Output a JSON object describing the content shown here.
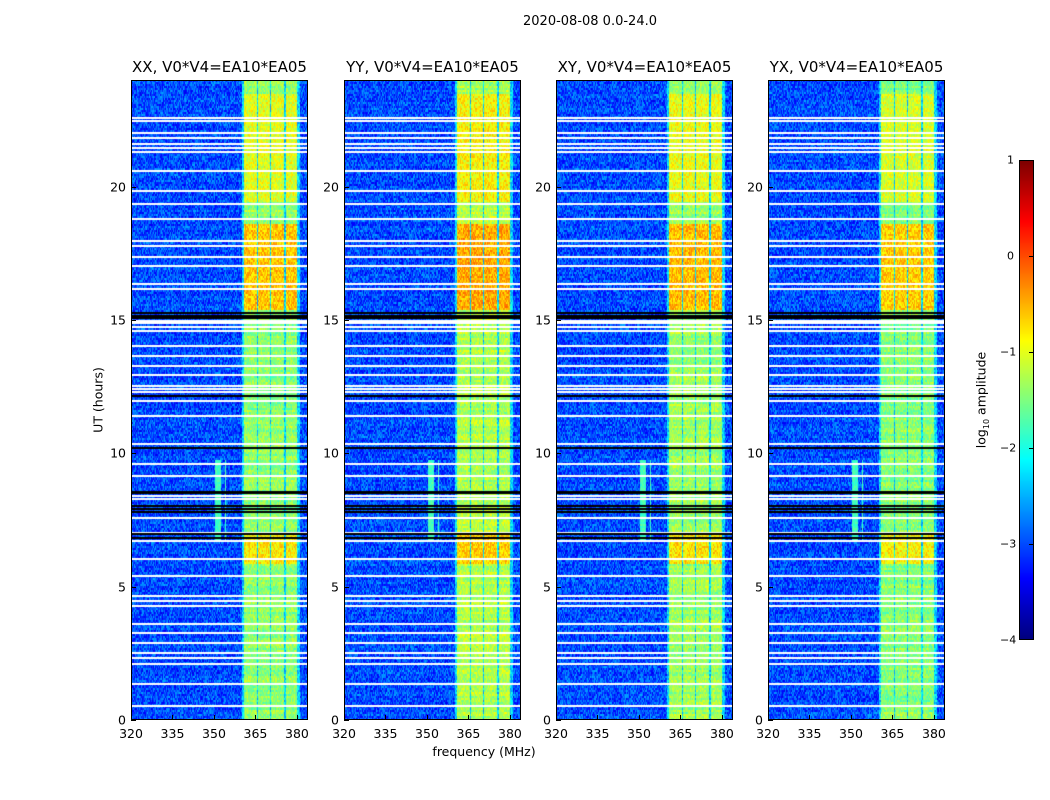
{
  "chart_data": {
    "type": "heatmap",
    "title": "2020-08-08 0.0-24.0",
    "xlabel": "frequency (MHz)",
    "ylabel": "UT (hours)",
    "xlim": [
      320,
      384
    ],
    "ylim": [
      0,
      24
    ],
    "xticks": [
      "320",
      "335",
      "350",
      "365",
      "380"
    ],
    "xtick_values": [
      320,
      335,
      350,
      365,
      380
    ],
    "yticks": [
      "0",
      "5",
      "10",
      "15",
      "20"
    ],
    "ytick_values": [
      0,
      5,
      10,
      15,
      20
    ],
    "panels": [
      {
        "title": "XX, V0*V4=EA10*EA05",
        "band_gain": 0.0
      },
      {
        "title": "YY, V0*V4=EA10*EA05",
        "band_gain": 0.15
      },
      {
        "title": "XY, V0*V4=EA10*EA05",
        "band_gain": 0.05
      },
      {
        "title": "YX, V0*V4=EA10*EA05",
        "band_gain": -0.05
      }
    ],
    "colorbar": {
      "label_main": "log",
      "label_sub": "10",
      "label_rest": " amplitude",
      "range": [
        -4,
        1
      ],
      "ticks": [
        "1",
        "0",
        "−1",
        "−2",
        "−3",
        "−4"
      ],
      "tick_values": [
        1,
        0,
        -1,
        -2,
        -3,
        -4
      ],
      "colormap": "jet"
    },
    "background_level": -3.0,
    "band_segments_mhz": [
      [
        360.5,
        365.2
      ],
      [
        365.9,
        369.9
      ],
      [
        370.6,
        375.0
      ],
      [
        375.7,
        379.7
      ]
    ],
    "band_level": -1.4,
    "hot_intervals_hours": [
      [
        15.4,
        18.6,
        -0.6
      ],
      [
        5.9,
        7.1,
        -0.8
      ],
      [
        19.5,
        23.5,
        -1.0
      ]
    ],
    "rfi_interval_hours": [
      6.8,
      9.8
    ],
    "rfi_channels_mhz": [
      350.5,
      351.2,
      352.0,
      354.0
    ],
    "flagged_hours": [
      22.61,
      22.5,
      22.05,
      21.86,
      21.64,
      21.49,
      21.34,
      20.63,
      19.88,
      19.39,
      18.83,
      18.0,
      17.81,
      17.4,
      17.06,
      16.39,
      16.2,
      15.0,
      14.93,
      14.78,
      14.63,
      14.06,
      13.69,
      13.31,
      12.98,
      12.56,
      12.45,
      12.35,
      12.0,
      11.44,
      10.39,
      9.64,
      9.2,
      8.44,
      8.32,
      7.61,
      7.05,
      6.75,
      6.08,
      5.44,
      4.69,
      4.5,
      4.31,
      3.64,
      3.3,
      2.93,
      2.55,
      2.36,
      2.14,
      1.39,
      0.56
    ],
    "blank_hours": [
      15.2,
      15.3,
      15.1,
      12.2,
      10.25,
      8.6,
      8.55,
      8.05,
      7.95,
      7.85,
      7.0,
      6.85
    ]
  }
}
